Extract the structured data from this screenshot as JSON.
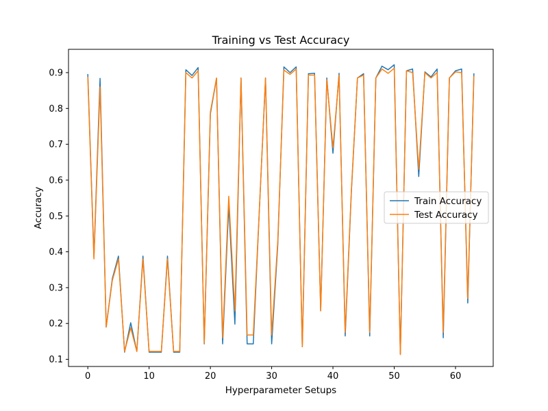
{
  "chart_data": {
    "type": "line",
    "title": "Training vs Test Accuracy",
    "xlabel": "Hyperparameter Setups",
    "ylabel": "Accuracy",
    "xlim": [
      -3.15,
      66.15
    ],
    "ylim": [
      0.08,
      0.965
    ],
    "xticks": [
      0,
      10,
      20,
      30,
      40,
      50,
      60
    ],
    "yticks": [
      0.1,
      0.2,
      0.3,
      0.4,
      0.5,
      0.6,
      0.7,
      0.8,
      0.9
    ],
    "grid": false,
    "legend": "center-right",
    "x": [
      0,
      1,
      2,
      3,
      4,
      5,
      6,
      7,
      8,
      9,
      10,
      11,
      12,
      13,
      14,
      15,
      16,
      17,
      18,
      19,
      20,
      21,
      22,
      23,
      24,
      25,
      26,
      27,
      28,
      29,
      30,
      31,
      32,
      33,
      34,
      35,
      36,
      37,
      38,
      39,
      40,
      41,
      42,
      43,
      44,
      45,
      46,
      47,
      48,
      49,
      50,
      51,
      52,
      53,
      54,
      55,
      56,
      57,
      58,
      59,
      60,
      61,
      62,
      63
    ],
    "series": [
      {
        "name": "Train Accuracy",
        "color": "#1f77b4",
        "values": [
          0.896,
          0.385,
          0.884,
          0.19,
          0.325,
          0.388,
          0.12,
          0.202,
          0.122,
          0.388,
          0.12,
          0.12,
          0.12,
          0.388,
          0.12,
          0.12,
          0.908,
          0.892,
          0.914,
          0.143,
          0.785,
          0.884,
          0.143,
          0.53,
          0.198,
          0.885,
          0.143,
          0.143,
          0.52,
          0.885,
          0.143,
          0.42,
          0.916,
          0.9,
          0.916,
          0.135,
          0.897,
          0.898,
          0.235,
          0.885,
          0.675,
          0.898,
          0.165,
          0.565,
          0.885,
          0.897,
          0.165,
          0.885,
          0.918,
          0.908,
          0.922,
          0.115,
          0.905,
          0.91,
          0.61,
          0.902,
          0.888,
          0.91,
          0.16,
          0.885,
          0.905,
          0.91,
          0.257,
          0.898
        ]
      },
      {
        "name": "Test Accuracy",
        "color": "#ff7f0e",
        "values": [
          0.888,
          0.38,
          0.86,
          0.19,
          0.32,
          0.38,
          0.122,
          0.188,
          0.122,
          0.38,
          0.122,
          0.122,
          0.122,
          0.38,
          0.122,
          0.122,
          0.9,
          0.885,
          0.905,
          0.145,
          0.79,
          0.885,
          0.16,
          0.555,
          0.235,
          0.885,
          0.168,
          0.168,
          0.52,
          0.885,
          0.168,
          0.43,
          0.907,
          0.895,
          0.91,
          0.135,
          0.893,
          0.893,
          0.235,
          0.88,
          0.69,
          0.893,
          0.175,
          0.57,
          0.885,
          0.893,
          0.175,
          0.885,
          0.91,
          0.898,
          0.912,
          0.113,
          0.905,
          0.9,
          0.63,
          0.9,
          0.885,
          0.9,
          0.175,
          0.885,
          0.902,
          0.9,
          0.27,
          0.89
        ]
      }
    ]
  }
}
